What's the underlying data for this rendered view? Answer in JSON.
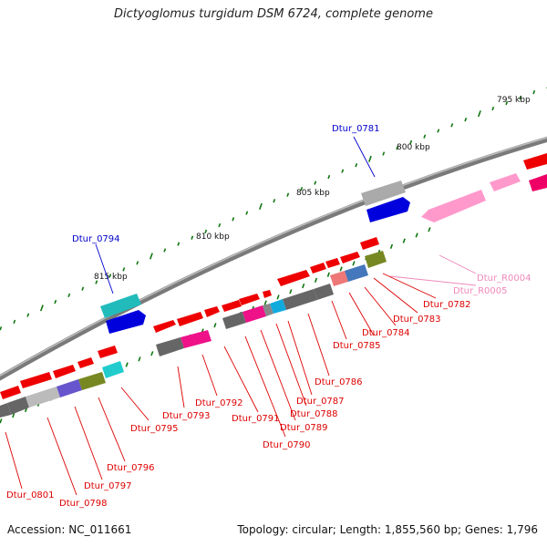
{
  "title": "Dictyoglomus turgidum DSM 6724, complete genome",
  "footer": {
    "accession": "Accession: NC_011661",
    "summary": "Topology: circular; Length: 1,855,560 bp; Genes: 1,796"
  },
  "ticks": [
    {
      "label": "795 kbp"
    },
    {
      "label": "800 kbp"
    },
    {
      "label": "805 kbp"
    },
    {
      "label": "810 kbp"
    },
    {
      "label": "815 kbp"
    }
  ],
  "gene_labels": [
    {
      "name": "Dtur_0781",
      "color": "#0000cc"
    },
    {
      "name": "Dtur_0794",
      "color": "#0000cc"
    },
    {
      "name": "Dtur_R0004",
      "color": "#ee88bb"
    },
    {
      "name": "Dtur_R0005",
      "color": "#ee88bb"
    },
    {
      "name": "Dtur_0782",
      "color": "#dd0000"
    },
    {
      "name": "Dtur_0783",
      "color": "#dd0000"
    },
    {
      "name": "Dtur_0784",
      "color": "#dd0000"
    },
    {
      "name": "Dtur_0785",
      "color": "#dd0000"
    },
    {
      "name": "Dtur_0786",
      "color": "#dd0000"
    },
    {
      "name": "Dtur_0787",
      "color": "#dd0000"
    },
    {
      "name": "Dtur_0788",
      "color": "#dd0000"
    },
    {
      "name": "Dtur_0789",
      "color": "#dd0000"
    },
    {
      "name": "Dtur_0790",
      "color": "#dd0000"
    },
    {
      "name": "Dtur_0791",
      "color": "#dd0000"
    },
    {
      "name": "Dtur_0792",
      "color": "#dd0000"
    },
    {
      "name": "Dtur_0793",
      "color": "#dd0000"
    },
    {
      "name": "Dtur_0795",
      "color": "#dd0000"
    },
    {
      "name": "Dtur_0796",
      "color": "#dd0000"
    },
    {
      "name": "Dtur_0797",
      "color": "#dd0000"
    },
    {
      "name": "Dtur_0798",
      "color": "#dd0000"
    },
    {
      "name": "Dtur_0801",
      "color": "#dd0000"
    }
  ],
  "colors": {
    "cds": "#ff0000",
    "rna": "#ff99cc",
    "backbone": "#888888",
    "tick": "#117711"
  }
}
